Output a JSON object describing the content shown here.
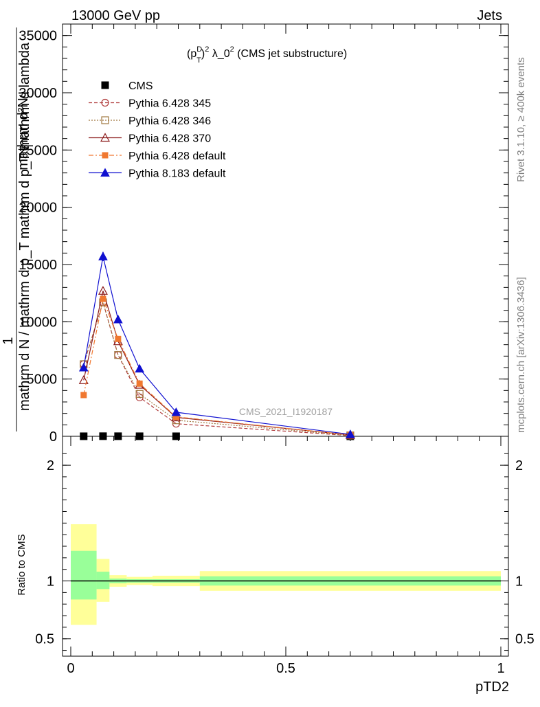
{
  "header": {
    "energy_label": "13000 GeV pp",
    "process_label": "Jets",
    "watermark": "CMS_2021_I1920187"
  },
  "side": {
    "rivet": "Rivet 3.1.10, ≥ 400k events",
    "mcplots": "mcplots.cern.ch [arXiv:1306.3436]"
  },
  "chart_data": [
    {
      "type": "line",
      "title_parts": {
        "p": "(p",
        "sub": "T",
        "sup": "D",
        "sq": "2",
        "rest": " λ_0",
        "sup2": "2",
        "tail": " (CMS jet substructure)"
      },
      "ylabel_top": "1",
      "ylabel_num": "mathrm d²N",
      "ylabel_den": "mathrm d N / mathrm d p_T mathrm d p_T mathrm d lambda",
      "xlim": [
        0,
        1
      ],
      "ylim": [
        0,
        36000
      ],
      "yticks": [
        0,
        5000,
        10000,
        15000,
        20000,
        25000,
        30000,
        35000
      ],
      "ytick_labels": [
        "0",
        "5000",
        "10000",
        "15000",
        "20000",
        "25000",
        "30000",
        "35000"
      ],
      "legend_position": "top-left",
      "bins": [
        [
          0,
          0.06
        ],
        [
          0.06,
          0.09
        ],
        [
          0.09,
          0.13
        ],
        [
          0.13,
          0.19
        ],
        [
          0.19,
          0.3
        ],
        [
          0.3,
          1.0
        ]
      ],
      "x": [
        0.03,
        0.075,
        0.11,
        0.16,
        0.245,
        0.65
      ],
      "series": [
        {
          "name": "CMS",
          "color": "#000000",
          "style": "cms",
          "values": [
            3,
            9,
            7,
            4,
            2,
            0.1
          ]
        },
        {
          "name": "Pythia 6.428 345",
          "color": "#b03c3c",
          "style": "circle-open",
          "values": [
            6300,
            11700,
            7100,
            3400,
            1100,
            60
          ]
        },
        {
          "name": "Pythia 6.428 346",
          "color": "#a07840",
          "style": "square-open",
          "values": [
            6300,
            11700,
            7100,
            3700,
            1400,
            80
          ]
        },
        {
          "name": "Pythia 6.428 370",
          "color": "#8b1a1a",
          "style": "triangle-open",
          "values": [
            4900,
            12700,
            8300,
            4500,
            1650,
            120
          ]
        },
        {
          "name": "Pythia 6.428 default",
          "color": "#f07830",
          "style": "square-filled",
          "values": [
            3600,
            12000,
            8500,
            4600,
            1700,
            120
          ]
        },
        {
          "name": "Pythia 8.183 default",
          "color": "#1010d0",
          "style": "triangle-filled",
          "values": [
            6000,
            15700,
            10200,
            5900,
            2100,
            170
          ]
        }
      ]
    },
    {
      "type": "area",
      "ylabel": "Ratio to CMS",
      "xlabel": "pTD2",
      "xlim": [
        0,
        1
      ],
      "ylim": [
        0.35,
        2.25
      ],
      "xticks": [
        0,
        0.5,
        1
      ],
      "xtick_labels": [
        "0",
        "0.5",
        "1"
      ],
      "yticks": [
        0.5,
        1,
        2
      ],
      "ytick_labels": [
        "0.5",
        "1",
        "2"
      ],
      "bands": [
        {
          "x0": 0.0,
          "x1": 0.06,
          "stat_lo": 0.84,
          "stat_hi": 1.26,
          "tot_lo": 0.62,
          "tot_hi": 1.49
        },
        {
          "x0": 0.06,
          "x1": 0.09,
          "stat_lo": 0.93,
          "stat_hi": 1.08,
          "tot_lo": 0.82,
          "tot_hi": 1.19
        },
        {
          "x0": 0.09,
          "x1": 0.13,
          "stat_lo": 0.98,
          "stat_hi": 1.02,
          "tot_lo": 0.95,
          "tot_hi": 1.05
        },
        {
          "x0": 0.13,
          "x1": 0.19,
          "stat_lo": 0.985,
          "stat_hi": 1.015,
          "tot_lo": 0.965,
          "tot_hi": 1.035
        },
        {
          "x0": 0.19,
          "x1": 0.3,
          "stat_lo": 0.985,
          "stat_hi": 1.015,
          "tot_lo": 0.955,
          "tot_hi": 1.045
        },
        {
          "x0": 0.3,
          "x1": 1.0,
          "stat_lo": 0.96,
          "stat_hi": 1.04,
          "tot_lo": 0.915,
          "tot_hi": 1.085
        }
      ],
      "stat_color": "#99ff99",
      "total_color": "#ffff99"
    }
  ]
}
